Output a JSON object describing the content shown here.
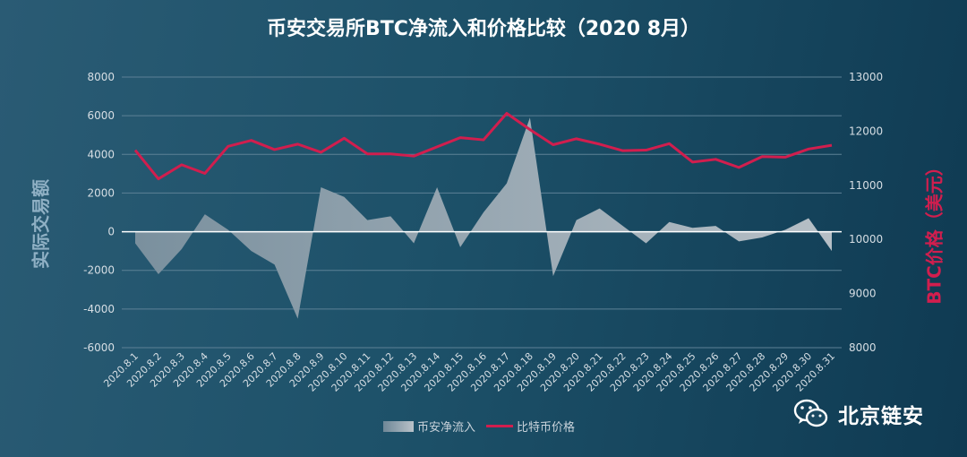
{
  "chart_data": {
    "type": "line",
    "title": "币安交易所BTC净流入和价格比较（2020 8月）",
    "ylabel_left": "实际交易额",
    "ylabel_right": "BTC价格（美元）",
    "categories": [
      "2020.8.1",
      "2020.8.2",
      "2020.8.3",
      "2020.8.4",
      "2020.8.5",
      "2020.8.6",
      "2020.8.7",
      "2020.8.8",
      "2020.8.9",
      "2020.8.10",
      "2020.8.11",
      "2020.8.12",
      "2020.8.13",
      "2020.8.14",
      "2020.8.15",
      "2020.8.16",
      "2020.8.17",
      "2020.8.18",
      "2020.8.19",
      "2020.8.20",
      "2020.8.21",
      "2020.8.22",
      "2020.8.23",
      "2020.8.24",
      "2020.8.25",
      "2020.8.26",
      "2020.8.27",
      "2020.8.28",
      "2020.8.29",
      "2020.8.30",
      "2020.8.31"
    ],
    "left_axis": {
      "ylim": [
        -6000,
        8000
      ],
      "ticks": [
        -6000,
        -4000,
        -2000,
        0,
        2000,
        4000,
        6000,
        8000
      ]
    },
    "right_axis": {
      "ylim": [
        8000,
        13000
      ],
      "ticks": [
        8000,
        9000,
        10000,
        11000,
        12000,
        13000
      ]
    },
    "series": [
      {
        "name": "币安净流入",
        "kind": "area",
        "axis": "left",
        "color": "#b9c2c9",
        "values": [
          -600,
          -2200,
          -900,
          900,
          100,
          -1000,
          -1700,
          -4500,
          2300,
          1800,
          600,
          800,
          -600,
          2300,
          -800,
          1000,
          2500,
          5900,
          -2300,
          600,
          1200,
          300,
          -600,
          500,
          200,
          300,
          -500,
          -300,
          100,
          700,
          -1000
        ]
      },
      {
        "name": "比特币价格",
        "kind": "line",
        "axis": "right",
        "color": "#d11e4e",
        "values": [
          11650,
          11120,
          11380,
          11220,
          11720,
          11830,
          11660,
          11760,
          11610,
          11870,
          11580,
          11580,
          11540,
          11710,
          11880,
          11840,
          12330,
          12030,
          11750,
          11860,
          11760,
          11640,
          11650,
          11770,
          11430,
          11480,
          11330,
          11530,
          11520,
          11670,
          11740
        ]
      }
    ],
    "legend_position": "bottom",
    "grid": "horizontal"
  },
  "watermark": {
    "text": "北京链安",
    "icon": "wechat-icon"
  }
}
